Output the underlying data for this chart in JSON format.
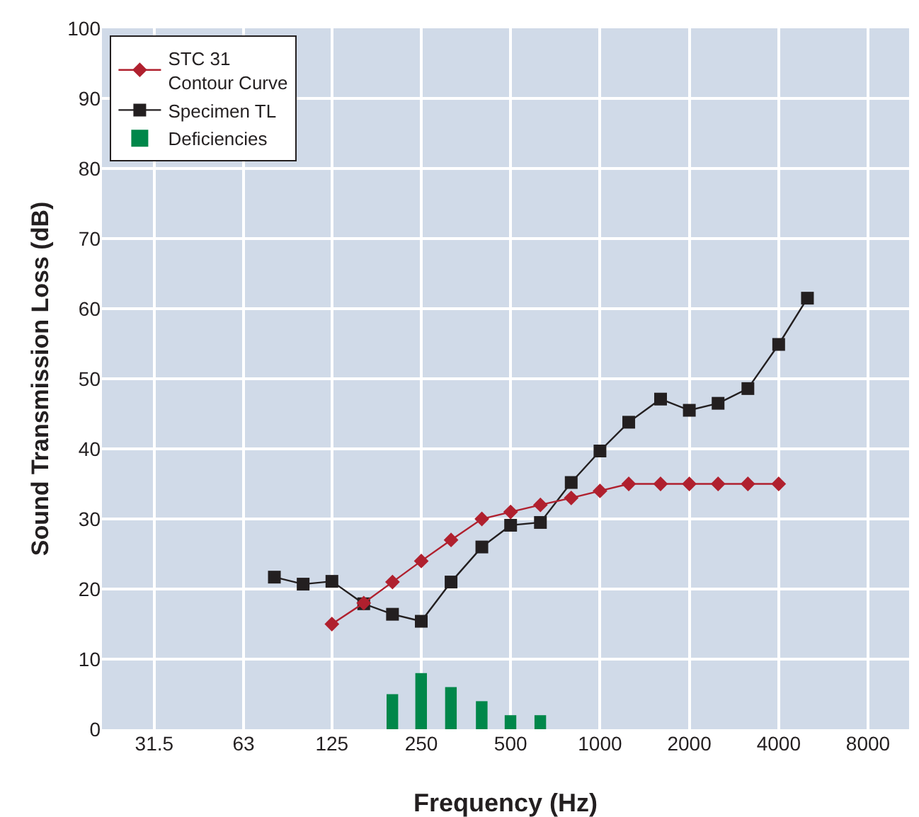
{
  "chart_data": {
    "type": "line",
    "xlabel": "Frequency (Hz)",
    "ylabel": "Sound Transmission Loss (dB)",
    "log": "x",
    "grid": true,
    "legend": "top left",
    "xlim": [
      21,
      11000
    ],
    "xticks": [
      31.5,
      63,
      125,
      250,
      500,
      1000,
      2000,
      4000,
      8000
    ],
    "ylim": [
      0,
      100
    ],
    "yticks": [
      0,
      10,
      20,
      30,
      40,
      50,
      60,
      70,
      80,
      90,
      100
    ],
    "series": [
      {
        "name": "STC 31\nContour Curve",
        "marker": "diamond",
        "color": "#b0202e",
        "x": [
          125,
          160,
          200,
          250,
          315,
          400,
          500,
          630,
          800,
          1000,
          1250,
          1600,
          2000,
          2500,
          3150,
          4000
        ],
        "values": [
          15,
          18,
          21,
          24,
          27,
          30,
          31,
          32,
          33,
          34,
          35,
          35,
          35,
          35,
          35,
          35
        ]
      },
      {
        "name": "Specimen TL",
        "marker": "square",
        "color": "#231f20",
        "x": [
          80,
          100,
          125,
          160,
          200,
          250,
          315,
          400,
          500,
          630,
          800,
          1000,
          1250,
          1600,
          2000,
          2500,
          3150,
          4000,
          5000
        ],
        "values": [
          21.7,
          20.7,
          21.1,
          17.9,
          16.4,
          15.4,
          21,
          26,
          29.1,
          29.5,
          35.2,
          39.7,
          43.8,
          47.1,
          45.5,
          46.5,
          48.6,
          54.9,
          61.5
        ]
      },
      {
        "name": "Deficiencies",
        "type": "bar",
        "color": "#00874a",
        "x": [
          200,
          250,
          315,
          400,
          500,
          630
        ],
        "values": [
          5,
          8,
          6,
          4,
          2,
          2
        ]
      }
    ]
  }
}
